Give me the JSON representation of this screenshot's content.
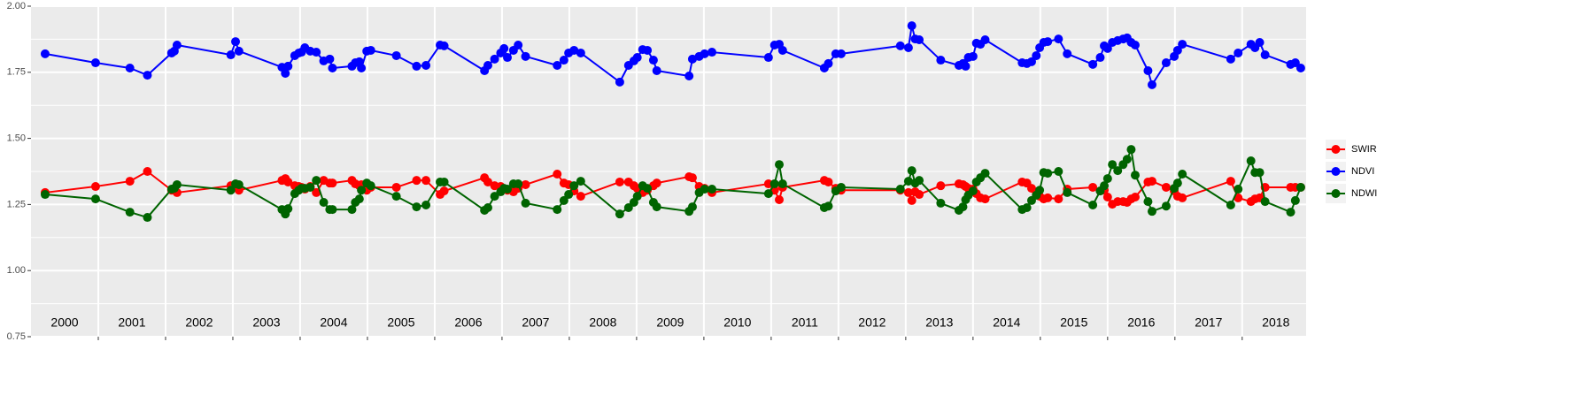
{
  "chart_data": {
    "type": "line",
    "x": [
      2000.21,
      2000.96,
      2001.47,
      2001.73,
      2002.09,
      2002.13,
      2002.17,
      2002.97,
      2003.04,
      2003.09,
      2003.73,
      2003.78,
      2003.82,
      2003.92,
      2003.98,
      2004.02,
      2004.07,
      2004.15,
      2004.24,
      2004.35,
      2004.44,
      2004.48,
      2004.77,
      2004.82,
      2004.88,
      2004.91,
      2004.99,
      2005.05,
      2005.43,
      2005.73,
      2005.87,
      2006.08,
      2006.14,
      2006.74,
      2006.79,
      2006.89,
      2006.98,
      2007.03,
      2007.08,
      2007.17,
      2007.24,
      2007.35,
      2007.82,
      2007.92,
      2007.99,
      2008.07,
      2008.17,
      2008.75,
      2008.88,
      2008.96,
      2009.01,
      2009.09,
      2009.16,
      2009.25,
      2009.3,
      2009.78,
      2009.83,
      2009.93,
      2010.01,
      2010.12,
      2010.96,
      2011.05,
      2011.12,
      2011.17,
      2011.79,
      2011.85,
      2011.96,
      2012.04,
      2012.92,
      2013.04,
      2013.09,
      2013.14,
      2013.2,
      2013.52,
      2013.79,
      2013.85,
      2013.89,
      2013.93,
      2014.0,
      2014.05,
      2014.11,
      2014.18,
      2014.73,
      2014.8,
      2014.87,
      2014.94,
      2014.99,
      2015.05,
      2015.11,
      2015.27,
      2015.4,
      2015.78,
      2015.89,
      2015.95,
      2016.0,
      2016.07,
      2016.15,
      2016.23,
      2016.29,
      2016.35,
      2016.41,
      2016.6,
      2016.66,
      2016.87,
      2016.99,
      2017.04,
      2017.11,
      2017.83,
      2017.94,
      2018.13,
      2018.19,
      2018.26,
      2018.34,
      2018.72,
      2018.79,
      2018.87
    ],
    "series": [
      {
        "name": "SWIR",
        "color": "#ff0000",
        "values": [
          1.295,
          1.318,
          1.338,
          1.375,
          1.304,
          1.311,
          1.295,
          1.321,
          1.315,
          1.304,
          1.341,
          1.348,
          1.335,
          1.321,
          1.318,
          1.315,
          1.308,
          1.318,
          1.295,
          1.341,
          1.331,
          1.331,
          1.341,
          1.328,
          1.321,
          1.325,
          1.304,
          1.315,
          1.315,
          1.341,
          1.341,
          1.288,
          1.301,
          1.351,
          1.335,
          1.321,
          1.318,
          1.308,
          1.304,
          1.298,
          1.311,
          1.325,
          1.365,
          1.331,
          1.325,
          1.301,
          1.281,
          1.335,
          1.335,
          1.321,
          1.311,
          1.295,
          1.304,
          1.321,
          1.331,
          1.355,
          1.351,
          1.318,
          1.311,
          1.295,
          1.328,
          1.304,
          1.268,
          1.315,
          1.341,
          1.335,
          1.311,
          1.304,
          1.304,
          1.295,
          1.265,
          1.298,
          1.288,
          1.321,
          1.328,
          1.325,
          1.318,
          1.311,
          1.308,
          1.291,
          1.275,
          1.271,
          1.335,
          1.331,
          1.311,
          1.298,
          1.281,
          1.271,
          1.275,
          1.271,
          1.308,
          1.315,
          1.301,
          1.304,
          1.278,
          1.251,
          1.261,
          1.261,
          1.258,
          1.271,
          1.278,
          1.335,
          1.338,
          1.315,
          1.301,
          1.281,
          1.275,
          1.338,
          1.275,
          1.261,
          1.271,
          1.275,
          1.315,
          1.315,
          1.315,
          1.315
        ]
      },
      {
        "name": "NDVI",
        "color": "#0000ff",
        "values": [
          1.82,
          1.786,
          1.766,
          1.739,
          1.823,
          1.83,
          1.853,
          1.816,
          1.866,
          1.83,
          1.769,
          1.746,
          1.773,
          1.813,
          1.823,
          1.826,
          1.843,
          1.83,
          1.826,
          1.793,
          1.8,
          1.766,
          1.773,
          1.786,
          1.79,
          1.766,
          1.83,
          1.833,
          1.813,
          1.773,
          1.776,
          1.853,
          1.85,
          1.756,
          1.776,
          1.8,
          1.823,
          1.84,
          1.806,
          1.833,
          1.853,
          1.81,
          1.776,
          1.796,
          1.823,
          1.833,
          1.823,
          1.713,
          1.776,
          1.793,
          1.806,
          1.836,
          1.833,
          1.796,
          1.756,
          1.736,
          1.8,
          1.81,
          1.82,
          1.826,
          1.806,
          1.853,
          1.856,
          1.833,
          1.766,
          1.783,
          1.82,
          1.82,
          1.85,
          1.843,
          1.926,
          1.876,
          1.873,
          1.796,
          1.776,
          1.783,
          1.773,
          1.806,
          1.81,
          1.86,
          1.856,
          1.873,
          1.786,
          1.783,
          1.79,
          1.813,
          1.843,
          1.863,
          1.866,
          1.876,
          1.82,
          1.78,
          1.806,
          1.85,
          1.84,
          1.863,
          1.87,
          1.876,
          1.88,
          1.863,
          1.853,
          1.756,
          1.703,
          1.786,
          1.81,
          1.833,
          1.856,
          1.8,
          1.823,
          1.856,
          1.843,
          1.863,
          1.816,
          1.78,
          1.786,
          1.766
        ]
      },
      {
        "name": "NDWI",
        "color": "#006400",
        "values": [
          1.288,
          1.271,
          1.221,
          1.201,
          1.308,
          1.311,
          1.325,
          1.304,
          1.328,
          1.325,
          1.231,
          1.214,
          1.234,
          1.291,
          1.304,
          1.311,
          1.311,
          1.315,
          1.341,
          1.258,
          1.231,
          1.231,
          1.231,
          1.258,
          1.271,
          1.304,
          1.331,
          1.321,
          1.281,
          1.241,
          1.248,
          1.335,
          1.335,
          1.228,
          1.238,
          1.281,
          1.298,
          1.311,
          1.308,
          1.328,
          1.328,
          1.255,
          1.231,
          1.265,
          1.288,
          1.321,
          1.338,
          1.214,
          1.238,
          1.258,
          1.281,
          1.321,
          1.311,
          1.258,
          1.241,
          1.224,
          1.241,
          1.295,
          1.308,
          1.308,
          1.291,
          1.328,
          1.401,
          1.328,
          1.238,
          1.244,
          1.301,
          1.315,
          1.308,
          1.338,
          1.378,
          1.331,
          1.341,
          1.255,
          1.228,
          1.241,
          1.268,
          1.285,
          1.301,
          1.335,
          1.351,
          1.368,
          1.231,
          1.238,
          1.265,
          1.285,
          1.304,
          1.371,
          1.368,
          1.375,
          1.295,
          1.248,
          1.301,
          1.321,
          1.348,
          1.401,
          1.378,
          1.401,
          1.421,
          1.458,
          1.361,
          1.261,
          1.224,
          1.244,
          1.311,
          1.331,
          1.365,
          1.248,
          1.308,
          1.415,
          1.371,
          1.371,
          1.261,
          1.221,
          1.265,
          1.315
        ]
      }
    ],
    "xlim": [
      2000,
      2018.95
    ],
    "xticks": [
      2001,
      2002,
      2003,
      2004,
      2005,
      2006,
      2007,
      2008,
      2009,
      2010,
      2011,
      2012,
      2013,
      2014,
      2015,
      2016,
      2017,
      2018
    ],
    "year_labels": [
      {
        "value": 2000.5,
        "label": "2000"
      },
      {
        "value": 2001.5,
        "label": "2001"
      },
      {
        "value": 2002.5,
        "label": "2002"
      },
      {
        "value": 2003.5,
        "label": "2003"
      },
      {
        "value": 2004.5,
        "label": "2004"
      },
      {
        "value": 2005.5,
        "label": "2005"
      },
      {
        "value": 2006.5,
        "label": "2006"
      },
      {
        "value": 2007.5,
        "label": "2007"
      },
      {
        "value": 2008.5,
        "label": "2008"
      },
      {
        "value": 2009.5,
        "label": "2009"
      },
      {
        "value": 2010.5,
        "label": "2010"
      },
      {
        "value": 2011.5,
        "label": "2011"
      },
      {
        "value": 2012.5,
        "label": "2012"
      },
      {
        "value": 2013.5,
        "label": "2013"
      },
      {
        "value": 2014.5,
        "label": "2014"
      },
      {
        "value": 2015.5,
        "label": "2015"
      },
      {
        "value": 2016.5,
        "label": "2016"
      },
      {
        "value": 2017.5,
        "label": "2017"
      },
      {
        "value": 2018.5,
        "label": "2018"
      }
    ],
    "ylim": [
      0.75,
      2.0
    ],
    "yticks": [
      0.75,
      {
        "value": 1,
        "label": "1.00"
      },
      1.25,
      {
        "value": 1.5,
        "label": "1.50"
      },
      1.75,
      {
        "value": 2,
        "label": "2.00"
      }
    ],
    "grid": true,
    "legend": "right"
  }
}
